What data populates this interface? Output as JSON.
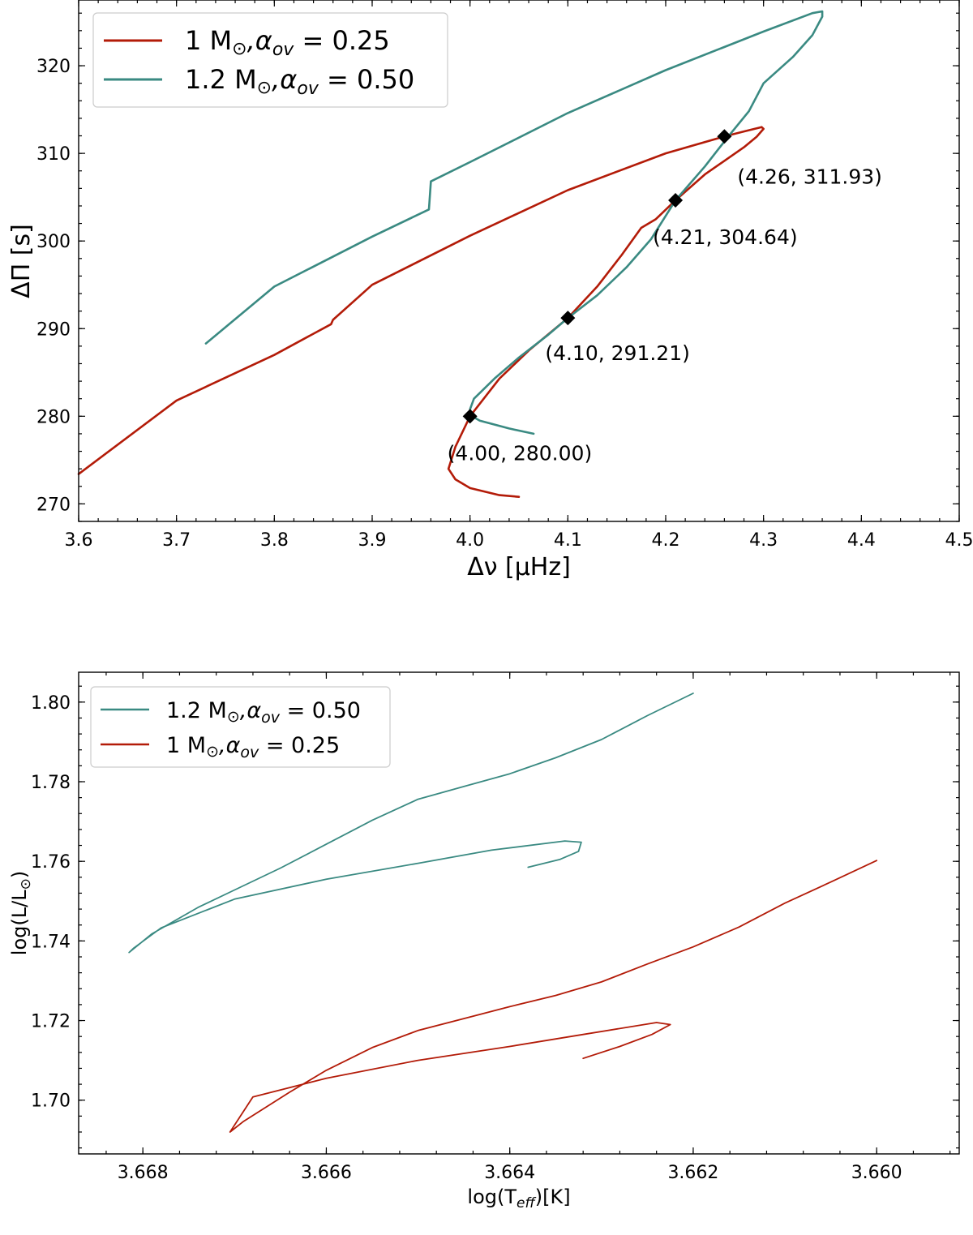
{
  "chart_data": [
    {
      "type": "line",
      "xlabel": "Δν [μHz]",
      "ylabel": "ΔΠ [s]",
      "xlim": [
        3.6,
        4.5
      ],
      "ylim": [
        268.0,
        327.5
      ],
      "xticks": [
        3.6,
        3.7,
        3.8,
        3.9,
        4.0,
        4.1,
        4.2,
        4.3,
        4.4,
        4.5
      ],
      "xtick_labels": [
        "3.6",
        "3.7",
        "3.8",
        "3.9",
        "4.0",
        "4.1",
        "4.2",
        "4.3",
        "4.4",
        "4.5"
      ],
      "yticks": [
        270,
        280,
        290,
        300,
        310,
        320
      ],
      "ytick_labels": [
        "270",
        "280",
        "290",
        "300",
        "310",
        "320"
      ],
      "legend_position": "upper-left",
      "series": [
        {
          "name": "1 M⊙,αov = 0.25",
          "label_main": "1 M",
          "label_sub": "⊙",
          "label_alpha": ",α",
          "label_ov": "ov",
          "label_value": " = 0.25",
          "color": "#b31b08",
          "x": [
            4.05,
            4.03,
            4.0,
            3.985,
            3.978,
            3.985,
            4.0,
            4.03,
            4.06,
            4.1,
            4.13,
            4.155,
            4.175,
            4.19,
            4.21,
            4.24,
            4.262,
            4.28,
            4.293,
            4.3,
            4.298,
            4.28,
            4.26,
            4.2,
            4.1,
            4.0,
            3.9,
            3.86,
            3.858,
            3.8,
            3.7,
            3.6
          ],
          "y": [
            270.8,
            271.0,
            271.8,
            272.8,
            274.0,
            276.5,
            280.0,
            284.3,
            287.5,
            291.21,
            294.8,
            298.4,
            301.5,
            302.5,
            304.64,
            307.6,
            309.3,
            310.7,
            311.9,
            312.8,
            313.0,
            312.5,
            311.93,
            310.0,
            305.8,
            300.6,
            295.0,
            291.0,
            290.5,
            287.0,
            281.8,
            273.4
          ]
        },
        {
          "name": "1.2 M⊙,αov = 0.50",
          "label_main": "1.2 M",
          "label_sub": "⊙",
          "label_alpha": ",α",
          "label_ov": "ov",
          "label_value": " = 0.50",
          "color": "#3a8a82",
          "x": [
            4.065,
            4.04,
            4.01,
            4.002,
            4.0,
            4.004,
            4.025,
            4.05,
            4.08,
            4.1,
            4.13,
            4.16,
            4.185,
            4.21,
            4.24,
            4.264,
            4.285,
            4.3,
            4.33,
            4.35,
            4.36,
            4.36,
            4.35,
            4.3,
            4.2,
            4.1,
            4.0,
            3.96,
            3.958,
            3.9,
            3.8,
            3.73
          ],
          "y": [
            278.0,
            278.6,
            279.5,
            280.0,
            280.8,
            282.0,
            284.3,
            286.7,
            289.3,
            291.21,
            293.8,
            297.0,
            300.2,
            304.64,
            308.5,
            311.93,
            314.8,
            318.0,
            321.0,
            323.5,
            325.6,
            326.2,
            326.0,
            323.9,
            319.5,
            314.6,
            309.0,
            306.8,
            303.6,
            300.5,
            294.8,
            288.3
          ]
        }
      ],
      "markers": {
        "style": "diamond",
        "color": "#000000",
        "x": [
          4.0,
          4.1,
          4.21,
          4.26
        ],
        "y": [
          280.0,
          291.21,
          304.64,
          311.93
        ]
      },
      "annotations": [
        {
          "text": "(4.00, 280.00)",
          "x": 4.0,
          "y": 280.0
        },
        {
          "text": "(4.10, 291.21)",
          "x": 4.1,
          "y": 291.21
        },
        {
          "text": "(4.21, 304.64)",
          "x": 4.21,
          "y": 304.64
        },
        {
          "text": "(4.26, 311.93)",
          "x": 4.26,
          "y": 311.93
        }
      ]
    },
    {
      "type": "line",
      "xlabel": "log(Teff)[K]",
      "xlabel_main": "log(T",
      "xlabel_sub": "eff",
      "xlabel_tail": ")[K]",
      "ylabel": "log(L/L⊙)",
      "ylabel_main": "log(L/L",
      "ylabel_sub": "⊙",
      "ylabel_tail": ")",
      "x_inverted": true,
      "xlim": [
        3.6687,
        3.6591
      ],
      "ylim": [
        1.6865,
        1.8075
      ],
      "xticks": [
        3.668,
        3.666,
        3.664,
        3.662,
        3.66
      ],
      "xtick_labels": [
        "3.668",
        "3.666",
        "3.664",
        "3.662",
        "3.660"
      ],
      "yticks": [
        1.7,
        1.72,
        1.74,
        1.76,
        1.78,
        1.8
      ],
      "ytick_labels": [
        "1.70",
        "1.72",
        "1.74",
        "1.76",
        "1.78",
        "1.80"
      ],
      "legend_position": "upper-left",
      "series": [
        {
          "name": "1.2 M⊙,αov = 0.50",
          "label_main": "1.2 M",
          "label_sub": "⊙",
          "label_alpha": ",α",
          "label_ov": "ov",
          "label_value": " = 0.50",
          "color": "#3a8a82",
          "x": [
            3.6638,
            3.66345,
            3.66325,
            3.66322,
            3.6634,
            3.6642,
            3.665,
            3.666,
            3.667,
            3.6678,
            3.6681,
            3.66815,
            3.6679,
            3.6674,
            3.667,
            3.6665,
            3.666,
            3.6655,
            3.665,
            3.6645,
            3.664,
            3.6635,
            3.663,
            3.6625,
            3.662
          ],
          "y": [
            1.7585,
            1.7605,
            1.7625,
            1.7648,
            1.7651,
            1.7628,
            1.7595,
            1.7555,
            1.7505,
            1.7433,
            1.7382,
            1.7371,
            1.7418,
            1.7484,
            1.7528,
            1.7583,
            1.7643,
            1.7703,
            1.7756,
            1.7788,
            1.782,
            1.786,
            1.7906,
            1.7966,
            1.8022
          ]
        },
        {
          "name": "1 M⊙,αov = 0.25",
          "label_main": "1 M",
          "label_sub": "⊙",
          "label_alpha": ",α",
          "label_ov": "ov",
          "label_value": " = 0.25",
          "color": "#b31b08",
          "x": [
            3.6632,
            3.6628,
            3.66245,
            3.66225,
            3.6624,
            3.6632,
            3.664,
            3.665,
            3.666,
            3.6668,
            3.66705,
            3.6669,
            3.6664,
            3.666,
            3.6655,
            3.665,
            3.6645,
            3.664,
            3.6635,
            3.663,
            3.6625,
            3.662,
            3.6615,
            3.661,
            3.6605,
            3.66
          ],
          "y": [
            1.7105,
            1.7135,
            1.7165,
            1.719,
            1.7195,
            1.7165,
            1.7135,
            1.71,
            1.7055,
            1.7008,
            1.692,
            1.6947,
            1.702,
            1.7075,
            1.7132,
            1.7175,
            1.7205,
            1.7235,
            1.7263,
            1.7297,
            1.7342,
            1.7385,
            1.7435,
            1.7495,
            1.7548,
            1.7602
          ]
        }
      ]
    }
  ]
}
